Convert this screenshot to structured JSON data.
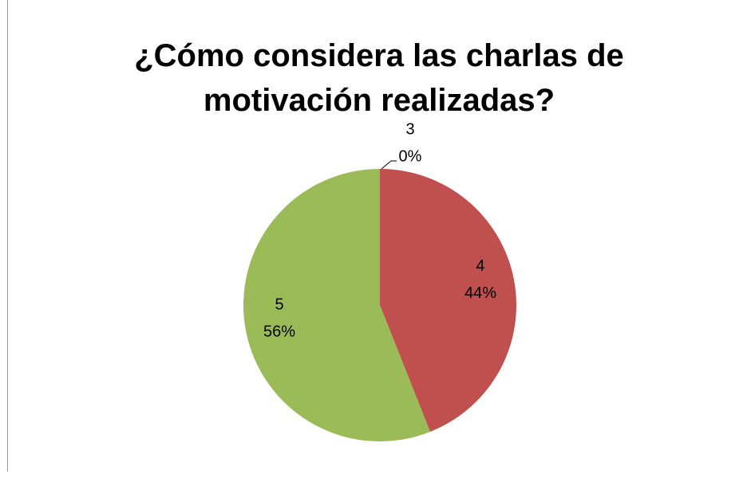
{
  "chart_data": {
    "type": "pie",
    "title": "¿Cómo considera las charlas de motivación realizadas?",
    "categories": [
      "3",
      "4",
      "5"
    ],
    "values": [
      0,
      44,
      56
    ],
    "value_labels": [
      "0%",
      "44%",
      "56%"
    ],
    "colors": [
      "#4f81bd",
      "#c0504d",
      "#9bbb59"
    ]
  }
}
